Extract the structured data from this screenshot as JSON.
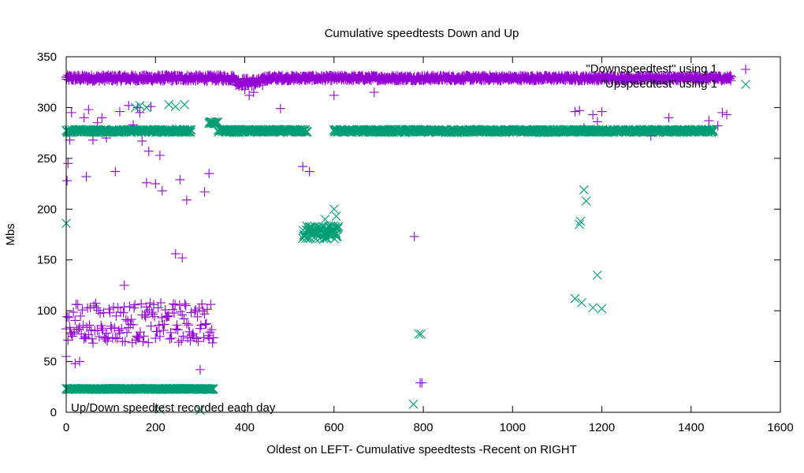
{
  "chart_data": {
    "type": "scatter",
    "title": "Cumulative speedtests Down and Up",
    "xlabel": "Oldest on LEFT- Cumulative speedtests -Recent on RIGHT",
    "ylabel": "Mbs",
    "xlim": [
      0,
      1600
    ],
    "ylim": [
      0,
      350
    ],
    "x_ticks": [
      0,
      200,
      400,
      600,
      800,
      1000,
      1200,
      1400,
      1600
    ],
    "y_ticks": [
      0,
      50,
      100,
      150,
      200,
      250,
      300,
      350
    ],
    "grid": false,
    "legend_position": "top-right",
    "annotation": "Up/Down speedtest recorded each day",
    "series": [
      {
        "name": "\"Downspeedtest\" using 1",
        "color": "#9400d3",
        "marker": "plus",
        "bands": [
          {
            "x_range": [
              0,
              380
            ],
            "y": 329,
            "jitter": 3
          },
          {
            "x_range": [
              380,
              440
            ],
            "y": 325,
            "jitter": 4
          },
          {
            "x_range": [
              440,
              1490
            ],
            "y": 329,
            "jitter": 2.5
          },
          {
            "x_range": [
              0,
              330
            ],
            "y": 88,
            "jitter": 20,
            "step": 2
          }
        ],
        "points": [
          [
            0,
            55
          ],
          [
            2,
            228
          ],
          [
            4,
            245
          ],
          [
            6,
            276
          ],
          [
            8,
            268
          ],
          [
            12,
            295
          ],
          [
            20,
            48
          ],
          [
            30,
            50
          ],
          [
            40,
            290
          ],
          [
            45,
            232
          ],
          [
            50,
            298
          ],
          [
            60,
            268
          ],
          [
            70,
            285
          ],
          [
            80,
            290
          ],
          [
            90,
            270
          ],
          [
            110,
            237
          ],
          [
            120,
            296
          ],
          [
            130,
            125
          ],
          [
            140,
            302
          ],
          [
            150,
            283
          ],
          [
            160,
            300
          ],
          [
            165,
            295
          ],
          [
            170,
            267
          ],
          [
            180,
            226
          ],
          [
            185,
            257
          ],
          [
            190,
            301
          ],
          [
            200,
            225
          ],
          [
            210,
            253
          ],
          [
            215,
            218
          ],
          [
            245,
            156
          ],
          [
            255,
            229
          ],
          [
            260,
            152
          ],
          [
            270,
            209
          ],
          [
            300,
            42
          ],
          [
            310,
            217
          ],
          [
            320,
            235
          ],
          [
            380,
            322
          ],
          [
            400,
            318
          ],
          [
            410,
            312
          ],
          [
            420,
            315
          ],
          [
            480,
            299
          ],
          [
            530,
            242
          ],
          [
            545,
            237
          ],
          [
            600,
            312
          ],
          [
            690,
            315
          ],
          [
            780,
            173
          ],
          [
            793,
            29
          ],
          [
            797,
            29
          ],
          [
            1140,
            296
          ],
          [
            1150,
            297
          ],
          [
            1160,
            280
          ],
          [
            1180,
            293
          ],
          [
            1190,
            286
          ],
          [
            1200,
            296
          ],
          [
            1310,
            272
          ],
          [
            1350,
            290
          ],
          [
            1440,
            287
          ],
          [
            1460,
            282
          ],
          [
            1470,
            295
          ],
          [
            1480,
            293
          ]
        ]
      },
      {
        "name": "\"Upspeedtest\" using 1",
        "color": "#009e73",
        "marker": "x",
        "bands": [
          {
            "x_range": [
              0,
              280
            ],
            "y": 277,
            "jitter": 1.5
          },
          {
            "x_range": [
              0,
              330
            ],
            "y": 23,
            "jitter": 0.5
          },
          {
            "x_range": [
              320,
              340
            ],
            "y": 285,
            "jitter": 1
          },
          {
            "x_range": [
              340,
              540
            ],
            "y": 277,
            "jitter": 1.5
          },
          {
            "x_range": [
              530,
              610
            ],
            "y": 177,
            "jitter": 7
          },
          {
            "x_range": [
              600,
              1450
            ],
            "y": 277,
            "jitter": 1.5
          }
        ],
        "points": [
          [
            0,
            186
          ],
          [
            155,
            300
          ],
          [
            165,
            302
          ],
          [
            180,
            300
          ],
          [
            230,
            303
          ],
          [
            245,
            301
          ],
          [
            265,
            303
          ],
          [
            210,
            3
          ],
          [
            300,
            2
          ],
          [
            580,
            190
          ],
          [
            600,
            200
          ],
          [
            605,
            193
          ],
          [
            778,
            8
          ],
          [
            790,
            77
          ],
          [
            795,
            77
          ],
          [
            1140,
            112
          ],
          [
            1150,
            185
          ],
          [
            1152,
            188
          ],
          [
            1155,
            108
          ],
          [
            1160,
            219
          ],
          [
            1165,
            208
          ],
          [
            1180,
            103
          ],
          [
            1190,
            135
          ],
          [
            1200,
            102
          ]
        ]
      }
    ]
  }
}
